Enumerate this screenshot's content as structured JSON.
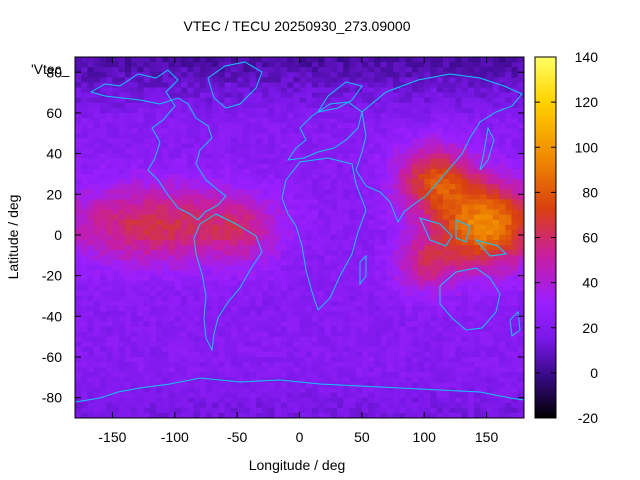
{
  "chart_data": {
    "type": "heatmap",
    "title": "VTEC / TECU 20250930_273.09000",
    "xlabel": "Longitude / deg",
    "ylabel": "Latitude / deg",
    "legend_label": "'Vtec_",
    "xlim": [
      -180,
      180
    ],
    "ylim": [
      -90,
      87.5
    ],
    "x_ticks": [
      -150,
      -100,
      -50,
      0,
      50,
      100,
      150
    ],
    "y_ticks": [
      -80,
      -60,
      -40,
      -20,
      0,
      20,
      40,
      60,
      80
    ],
    "colorbar": {
      "range": [
        -20,
        140
      ],
      "ticks": [
        -20,
        0,
        20,
        40,
        60,
        80,
        100,
        120,
        140
      ],
      "palette": [
        "#000000",
        "#3a0a8a",
        "#7a18e8",
        "#9a1fff",
        "#c81ea0",
        "#d94010",
        "#f08a00",
        "#ffd400",
        "#ffff66"
      ]
    },
    "grid_resolution": {
      "dlon": 5,
      "dlat": 2.5
    },
    "features": [
      {
        "name": "equatorial crest Americas-Africa",
        "lon_center": -115,
        "lat_center": 5,
        "lon_span": 170,
        "lat_span": 40,
        "peak_tecu": 65
      },
      {
        "name": "equatorial crest Asia-Pacific",
        "lon_center": 145,
        "lat_center": 5,
        "lon_span": 110,
        "lat_span": 55,
        "peak_tecu": 100
      },
      {
        "name": "northern Asia enhancement",
        "lon_center": 110,
        "lat_center": 30,
        "lon_span": 70,
        "lat_span": 30,
        "peak_tecu": 75
      },
      {
        "name": "high-latitude trough",
        "lat_north_of": 60,
        "min_tecu": 5
      },
      {
        "name": "southern polar region",
        "lat_south_of": -70,
        "typical_tecu": 20
      }
    ]
  }
}
